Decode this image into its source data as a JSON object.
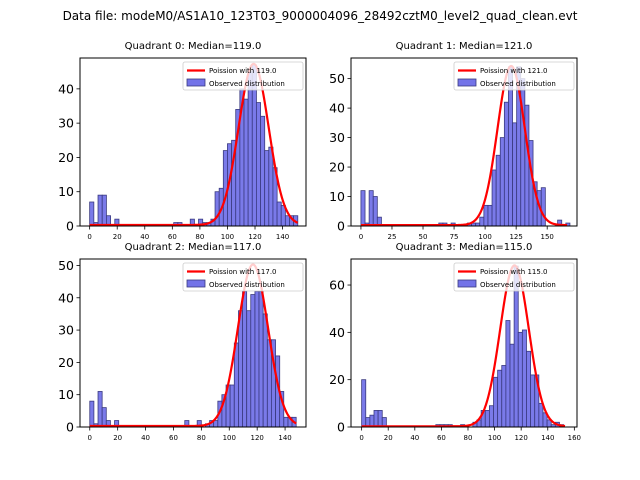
{
  "figure": {
    "suptitle": "Data file: modeM0/AS1A10_123T03_9000004096_28492cztM0_level2_quad_clean.evt"
  },
  "chart_data": [
    {
      "type": "bar",
      "title": "Quadrant 0: Median=119.0",
      "xlabel": "",
      "ylabel": "",
      "xlim": [
        -7,
        157
      ],
      "ylim": [
        0,
        49
      ],
      "xticks": [
        0,
        20,
        40,
        60,
        80,
        100,
        120,
        140
      ],
      "yticks": [
        0,
        10,
        20,
        30,
        40
      ],
      "bin_width": 3.04,
      "bins": [
        0,
        3.04,
        6.08,
        9.12,
        12.16,
        15.2,
        18.24,
        61,
        64,
        73,
        79,
        82,
        85,
        88,
        91,
        94,
        97,
        100,
        103,
        106,
        109,
        112,
        115,
        118,
        121,
        124,
        127,
        130,
        133,
        136,
        139,
        142,
        145,
        148
      ],
      "values": [
        7,
        1,
        9,
        9,
        3,
        0,
        2,
        1,
        1,
        2,
        2,
        1,
        1,
        2,
        10,
        11,
        22,
        24,
        25,
        34,
        40,
        37,
        45,
        47,
        36,
        32,
        22,
        23,
        17,
        7,
        6,
        3,
        3,
        3
      ],
      "fit": {
        "label": "Poission with 119.0",
        "mean": 119.0,
        "peak": 47,
        "range": [
          0,
          151
        ]
      },
      "legend": {
        "entries": [
          "Poission with 119.0",
          "Observed distribution"
        ],
        "position": "upper-right"
      },
      "colors": {
        "bar": "#7373e8",
        "edge": "#3a3a80",
        "line": "#ff0000"
      }
    },
    {
      "type": "bar",
      "title": "Quadrant 1: Median=121.0",
      "xlabel": "",
      "ylabel": "",
      "xlim": [
        -8,
        174
      ],
      "ylim": [
        0,
        57
      ],
      "xticks": [
        0,
        25,
        50,
        75,
        100,
        125,
        150
      ],
      "xtick_labels": [
        "0",
        "25",
        "50",
        "75",
        "100",
        "125",
        "150"
      ],
      "yticks": [
        0,
        10,
        20,
        30,
        40,
        50
      ],
      "bin_width": 3.3,
      "bins": [
        0,
        3.3,
        6.6,
        9.9,
        13.2,
        62.7,
        66,
        72.6,
        85.8,
        89.1,
        92.4,
        95.7,
        99,
        102.3,
        105.6,
        108.9,
        112.2,
        115.5,
        118.8,
        122.1,
        125.4,
        128.7,
        132,
        135.3,
        138.6,
        141.9,
        145.2,
        158.4,
        165
      ],
      "values": [
        12,
        1,
        12,
        10,
        3,
        1,
        1,
        1,
        1,
        1,
        1,
        3,
        7,
        7,
        19,
        24,
        30,
        42,
        54,
        35,
        54,
        50,
        41,
        29,
        15,
        12,
        13,
        2,
        1
      ],
      "fit": {
        "label": "Poission with 121.0",
        "mean": 121.0,
        "peak": 54,
        "range": [
          0,
          166
        ]
      },
      "legend": {
        "entries": [
          "Poission with 121.0",
          "Observed distribution"
        ],
        "position": "upper-right"
      },
      "colors": {
        "bar": "#7373e8",
        "edge": "#3a3a80",
        "line": "#ff0000"
      }
    },
    {
      "type": "bar",
      "title": "Quadrant 2: Median=117.0",
      "xlabel": "",
      "ylabel": "",
      "xlim": [
        -7,
        155
      ],
      "ylim": [
        0,
        52
      ],
      "xticks": [
        0,
        20,
        40,
        60,
        80,
        100,
        120,
        140
      ],
      "yticks": [
        0,
        10,
        20,
        30,
        40,
        50
      ],
      "bin_width": 2.96,
      "bins": [
        0,
        2.96,
        5.92,
        8.88,
        11.84,
        14.8,
        17.76,
        68.1,
        77,
        82.9,
        85.9,
        88.8,
        91.8,
        94.7,
        97.7,
        100.6,
        103.6,
        106.6,
        109.5,
        112.5,
        115.4,
        118.4,
        121.3,
        124.3,
        127.3,
        130.2,
        133.2,
        136.1,
        139.1,
        142.1,
        145
      ],
      "values": [
        8,
        1,
        11,
        6,
        2,
        0,
        2,
        2,
        2,
        1,
        2,
        2,
        8,
        10,
        13,
        13,
        26,
        36,
        42,
        36,
        41,
        42,
        42,
        35,
        27,
        27,
        22,
        11,
        3,
        3,
        3
      ],
      "fit": {
        "label": "Poission with 117.0",
        "mean": 117.0,
        "peak": 50,
        "range": [
          0,
          148
        ]
      },
      "legend": {
        "entries": [
          "Poission with 117.0",
          "Observed distribution"
        ],
        "position": "upper-right"
      },
      "colors": {
        "bar": "#7373e8",
        "edge": "#3a3a80",
        "line": "#ff0000"
      }
    },
    {
      "type": "bar",
      "title": "Quadrant 3: Median=115.0",
      "xlabel": "",
      "ylabel": "",
      "xlim": [
        -8,
        162
      ],
      "ylim": [
        0,
        71
      ],
      "xticks": [
        0,
        20,
        40,
        60,
        80,
        100,
        120,
        140,
        160
      ],
      "yticks": [
        0,
        20,
        40,
        60
      ],
      "bin_width": 3.1,
      "bins": [
        0,
        3.1,
        6.2,
        9.3,
        12.4,
        15.5,
        55.8,
        58.9,
        62,
        65.1,
        74.4,
        83.7,
        86.8,
        89.9,
        93,
        96.1,
        99.2,
        102.3,
        105.4,
        108.5,
        111.6,
        114.7,
        117.8,
        120.9,
        124,
        127.1,
        130.2,
        133.3,
        136.4,
        139.5,
        142.6,
        145.7,
        148.8
      ],
      "values": [
        20,
        4,
        5,
        7,
        7,
        4,
        1,
        1,
        1,
        1,
        1,
        2,
        3,
        7,
        7,
        9,
        21,
        24,
        26,
        45,
        35,
        68,
        40,
        41,
        32,
        22,
        22,
        10,
        6,
        3,
        1,
        2,
        1
      ],
      "fit": {
        "label": "Poission with 115.0",
        "mean": 115.0,
        "peak": 68,
        "range": [
          0,
          153
        ]
      },
      "legend": {
        "entries": [
          "Poission with 115.0",
          "Observed distribution"
        ],
        "position": "upper-right"
      },
      "colors": {
        "bar": "#7373e8",
        "edge": "#3a3a80",
        "line": "#ff0000"
      }
    }
  ]
}
